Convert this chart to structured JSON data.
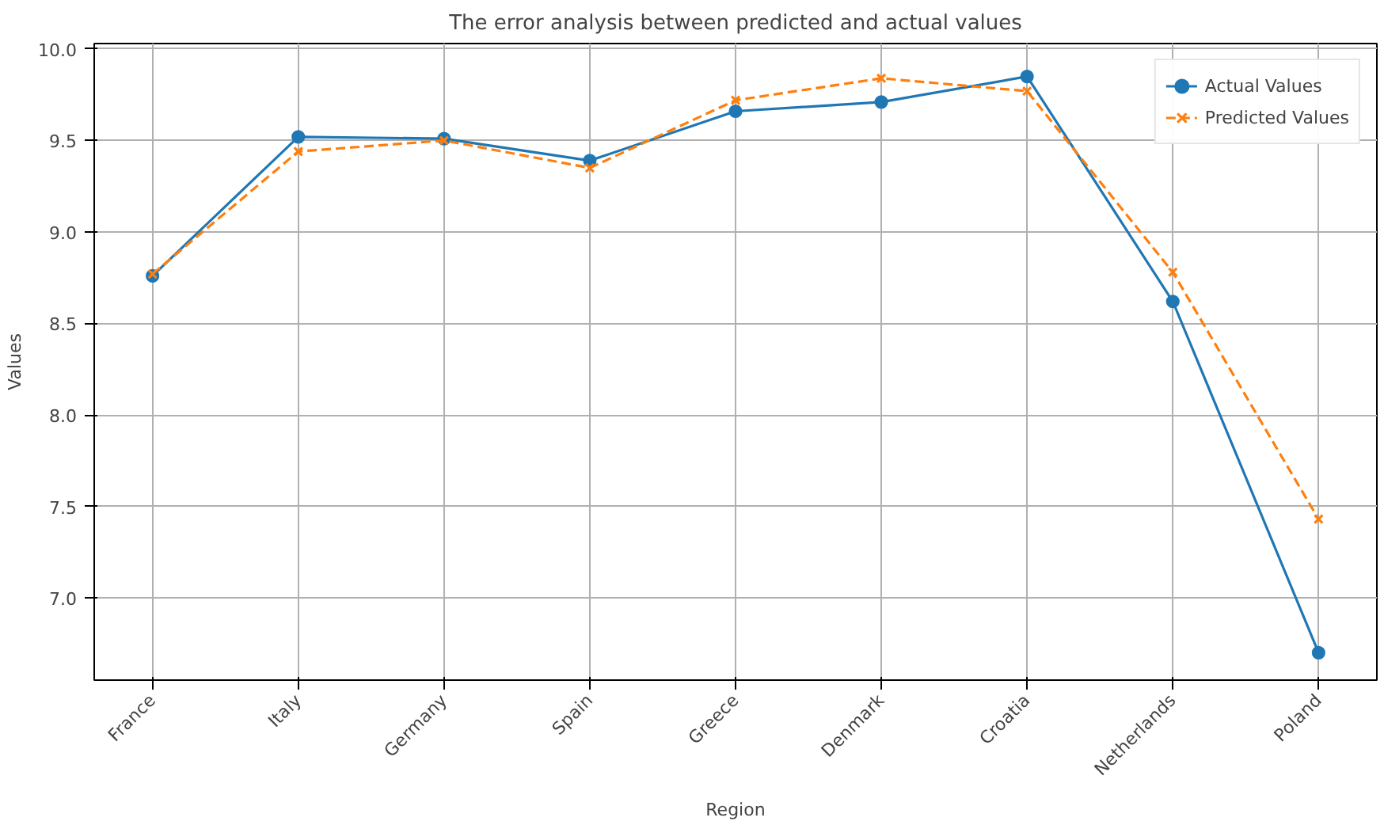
{
  "chart_data": {
    "type": "line",
    "title": "The error analysis between predicted and actual values",
    "xlabel": "Region",
    "ylabel": "Values",
    "categories": [
      "France",
      "Italy",
      "Germany",
      "Spain",
      "Greece",
      "Denmark",
      "Croatia",
      "Netherlands",
      "Poland"
    ],
    "series": [
      {
        "name": "Actual Values",
        "color": "#1f77b4",
        "marker": "circle",
        "line_style": "solid",
        "values": [
          8.76,
          9.52,
          9.51,
          9.39,
          9.66,
          9.71,
          9.85,
          8.62,
          6.7
        ]
      },
      {
        "name": "Predicted Values",
        "color": "#ff7f0e",
        "marker": "cross",
        "line_style": "dashed",
        "values": [
          8.77,
          9.44,
          9.5,
          9.35,
          9.72,
          9.84,
          9.77,
          8.78,
          7.43
        ]
      }
    ],
    "ylim": [
      6.55,
      10.03
    ],
    "yticks": [
      {
        "value": 7,
        "label": "7.0"
      },
      {
        "value": 7.5,
        "label": "7.5"
      },
      {
        "value": 8,
        "label": "8.0"
      },
      {
        "value": 8.5,
        "label": "8.5"
      },
      {
        "value": 9,
        "label": "9.0"
      },
      {
        "value": 9.5,
        "label": "9.5"
      },
      {
        "value": 10,
        "label": "10.0"
      }
    ],
    "grid": true,
    "legend": "top right"
  }
}
